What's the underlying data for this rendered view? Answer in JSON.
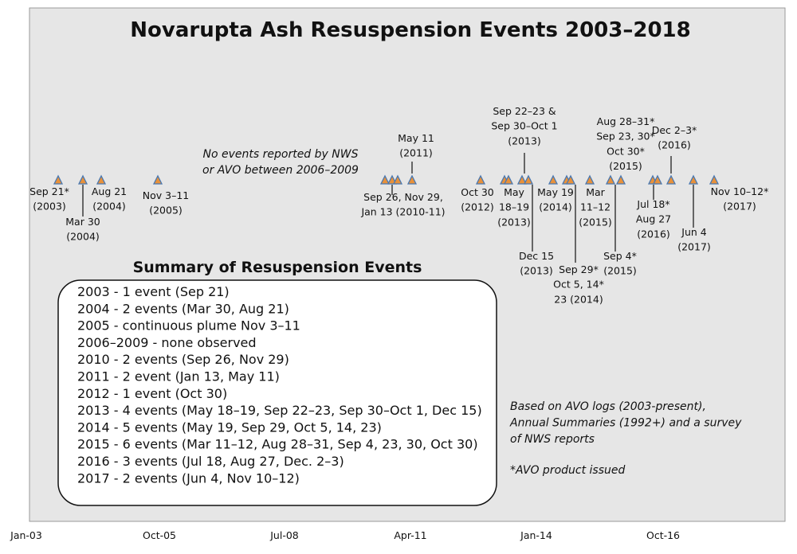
{
  "title": "Novarupta Ash Resuspension Events 2003–2018",
  "note": [
    "No events reported by NWS",
    "or AVO between 2006–2009"
  ],
  "events": [
    [
      "Sep 21*",
      "(2003)"
    ],
    [
      "Mar 30",
      "(2004)"
    ],
    [
      "Aug 21",
      "(2004)"
    ],
    [
      "Nov 3–11",
      "(2005)"
    ],
    [
      "May 11",
      "(2011)"
    ],
    [
      "Sep 26, Nov 29,",
      "Jan 13 (2010-11)"
    ],
    [
      "Oct 30",
      "(2012)"
    ],
    [
      "Sep 22–23 &",
      "Sep 30–Oct 1",
      "(2013)"
    ],
    [
      "May",
      "18–19",
      "(2013)"
    ],
    [
      "May 19",
      "(2014)"
    ],
    [
      "Dec 15",
      "(2013)"
    ],
    [
      "Mar",
      "11–12",
      "(2015)"
    ],
    [
      "Sep 29*",
      "Oct 5, 14*",
      "23 (2014)"
    ],
    [
      "Aug 28–31*",
      "Sep 23, 30*",
      "Oct 30*",
      "(2015)"
    ],
    [
      "Sep 4*",
      "(2015)"
    ],
    [
      "Dec 2–3*",
      "(2016)"
    ],
    [
      "Jul 18*",
      "Aug 27",
      "(2016)"
    ],
    [
      "Jun 4",
      "(2017)"
    ],
    [
      "Nov 10–12*",
      "(2017)"
    ]
  ],
  "summary": {
    "title": "Summary of  Resuspension Events",
    "rows": [
      "2003 - 1 event (Sep 21)",
      "2004 - 2 events (Mar 30, Aug 21)",
      "2005 - continuous plume Nov 3–11",
      "2006–2009 -  none observed",
      "2010 - 2 events (Sep 26, Nov 29)",
      "2011 - 2 event (Jan 13, May 11)",
      "2012 - 1 event (Oct 30)",
      "2013 - 4 events (May 18–19, Sep 22–23, Sep 30–Oct 1, Dec 15)",
      "2014 - 5 events (May 19, Sep 29, Oct 5, 14, 23)",
      "2015 - 6 events (Mar 11–12, Aug 28–31, Sep 4, 23, 30,  Oct 30)",
      "2016 - 3 events (Jul 18,  Aug 27, Dec. 2–3)",
      "2017 - 2 events (Jun 4, Nov 10–12)"
    ]
  },
  "source": [
    "Based on AVO logs (2003-present),",
    "Annual Summaries (1992+) and a survey",
    "of NWS reports"
  ],
  "footnote": "*AVO product issued",
  "axis": [
    "Jan-03",
    "Oct-05",
    "Jul-08",
    "Apr-11",
    "Jan-14",
    "Oct-16"
  ]
}
